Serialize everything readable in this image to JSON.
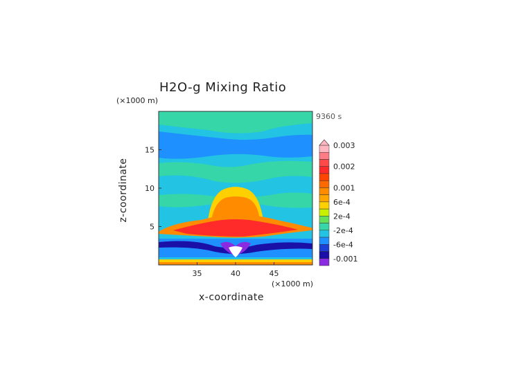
{
  "chart_data": {
    "type": "heatmap",
    "title": "H2O-g Mixing Ratio",
    "time_label": "9360 s",
    "xlabel": "x-coordinate",
    "ylabel": "z-coordinate",
    "x_unit": "(×1000 m)",
    "y_unit": "(×1000 m)",
    "xlim": [
      30,
      50
    ],
    "ylim": [
      0,
      20
    ],
    "x_ticks": [
      35,
      40,
      45
    ],
    "y_ticks": [
      5,
      10,
      15
    ],
    "colorbar": {
      "levels": [
        {
          "label": "0.003",
          "color": "#ffb6c1"
        },
        {
          "label": "",
          "color": "#ff7b86"
        },
        {
          "label": "",
          "color": "#ff4a4a"
        },
        {
          "label": "0.002",
          "color": "#ff2a2a"
        },
        {
          "label": "",
          "color": "#ff4500"
        },
        {
          "label": "",
          "color": "#ff6a00"
        },
        {
          "label": "0.001",
          "color": "#ff8c00"
        },
        {
          "label": "",
          "color": "#ffa500"
        },
        {
          "label": "6e-4",
          "color": "#ffd000"
        },
        {
          "label": "",
          "color": "#c8f000"
        },
        {
          "label": "2e-4",
          "color": "#66e05a"
        },
        {
          "label": "",
          "color": "#36d6a8"
        },
        {
          "label": "-2e-4",
          "color": "#23c3e3"
        },
        {
          "label": "",
          "color": "#1e90ff"
        },
        {
          "label": "-6e-4",
          "color": "#1c3fd6"
        },
        {
          "label": "",
          "color": "#1a10a8"
        },
        {
          "label": "-0.001",
          "color": "#8a2be2"
        }
      ]
    },
    "colors": {
      "background": "#23c3e3",
      "band_upper": "#36d6a8",
      "band_mid": "#1e90ff",
      "core_outer": "#ffd000",
      "core_inner": "#ff8c00",
      "core_red": "#ff2a2a",
      "low_blue": "#1a10a8",
      "low_purple": "#8a2be2",
      "surface": "#ffd000"
    }
  }
}
